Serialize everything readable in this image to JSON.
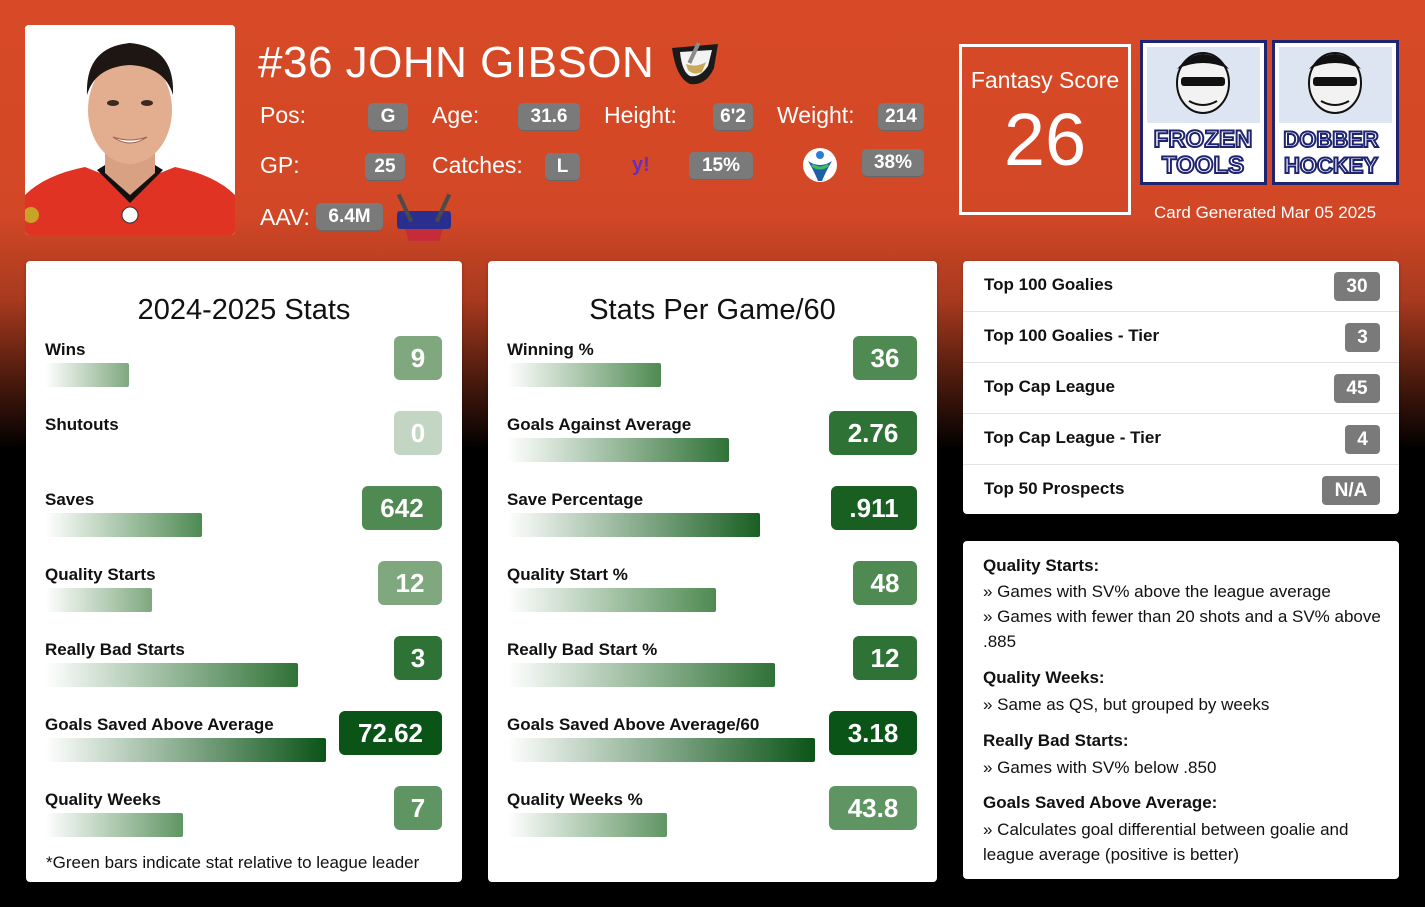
{
  "player": {
    "name": "#36 JOHN GIBSON",
    "team_logo_icon": "ducks-logo-icon",
    "pos_label": "Pos:",
    "pos": "G",
    "age_label": "Age:",
    "age": "31.6",
    "height_label": "Height:",
    "height": "6'2",
    "weight_label": "Weight:",
    "weight": "214",
    "gp_label": "GP:",
    "gp": "25",
    "catches_label": "Catches:",
    "catches": "L",
    "yahoo_icon": "yahoo-icon",
    "yahoo_pct": "15%",
    "espn_icon": "fantrax-icon",
    "espn_pct": "38%",
    "aav_label": "AAV:",
    "aav": "6.4M",
    "puckpedia_icon": "puckpedia-logo-icon"
  },
  "fantasy": {
    "label": "Fantasy Score",
    "score": "26"
  },
  "brands": {
    "left": "frozen-tools-logo",
    "right": "dobber-hockey-logo"
  },
  "card_date": "Card Generated Mar 05 2025",
  "season_stats": {
    "title": "2024-2025 Stats",
    "rows": [
      {
        "label": "Wins",
        "value": "9",
        "pct": 0.3,
        "color": "#7fa87f"
      },
      {
        "label": "Shutouts",
        "value": "0",
        "pct": 0.0,
        "color": "#c3d6c3"
      },
      {
        "label": "Saves",
        "value": "642",
        "pct": 0.56,
        "color": "#4e8a52"
      },
      {
        "label": "Quality Starts",
        "value": "12",
        "pct": 0.38,
        "color": "#7fa87f"
      },
      {
        "label": "Really Bad Starts",
        "value": "3",
        "pct": 0.9,
        "color": "#2f7236"
      },
      {
        "label": "Goals Saved Above Average",
        "value": "72.62",
        "pct": 1.0,
        "color": "#0b5417"
      },
      {
        "label": "Quality Weeks",
        "value": "7",
        "pct": 0.49,
        "color": "#5f9563"
      }
    ],
    "footnote": "*Green bars indicate stat relative to league leader"
  },
  "per_game_stats": {
    "title": "Stats Per Game/60",
    "rows": [
      {
        "label": "Winning %",
        "value": "36",
        "pct": 0.5,
        "color": "#4e8a52"
      },
      {
        "label": "Goals Against Average",
        "value": "2.76",
        "pct": 0.72,
        "color": "#2f7236"
      },
      {
        "label": "Save Percentage",
        "value": ".911",
        "pct": 0.82,
        "color": "#195f22"
      },
      {
        "label": "Quality Start %",
        "value": "48",
        "pct": 0.68,
        "color": "#4e8a52"
      },
      {
        "label": "Really Bad Start %",
        "value": "12",
        "pct": 0.87,
        "color": "#2f7236"
      },
      {
        "label": "Goals Saved Above Average/60",
        "value": "3.18",
        "pct": 1.0,
        "color": "#0b5417"
      },
      {
        "label": "Quality Weeks %",
        "value": "43.8",
        "pct": 0.52,
        "color": "#5f9563"
      }
    ]
  },
  "rankings": [
    {
      "label": "Top 100 Goalies",
      "value": "30"
    },
    {
      "label": "Top 100 Goalies - Tier",
      "value": "3"
    },
    {
      "label": "Top Cap League",
      "value": "45"
    },
    {
      "label": "Top Cap League - Tier",
      "value": "4"
    },
    {
      "label": "Top 50 Prospects",
      "value": "N/A"
    }
  ],
  "definitions": [
    {
      "title": "Quality Starts:",
      "lines": [
        "» Games with SV% above the league average",
        "» Games with fewer than 20 shots and a SV% above .885"
      ]
    },
    {
      "title": "Quality Weeks:",
      "lines": [
        "» Same as QS, but grouped by weeks"
      ]
    },
    {
      "title": "Really Bad Starts:",
      "lines": [
        "» Games with SV% below .850"
      ]
    },
    {
      "title": "Goals Saved Above Average:",
      "lines": [
        "» Calculates goal differential between goalie and league average (positive is better)"
      ]
    }
  ]
}
